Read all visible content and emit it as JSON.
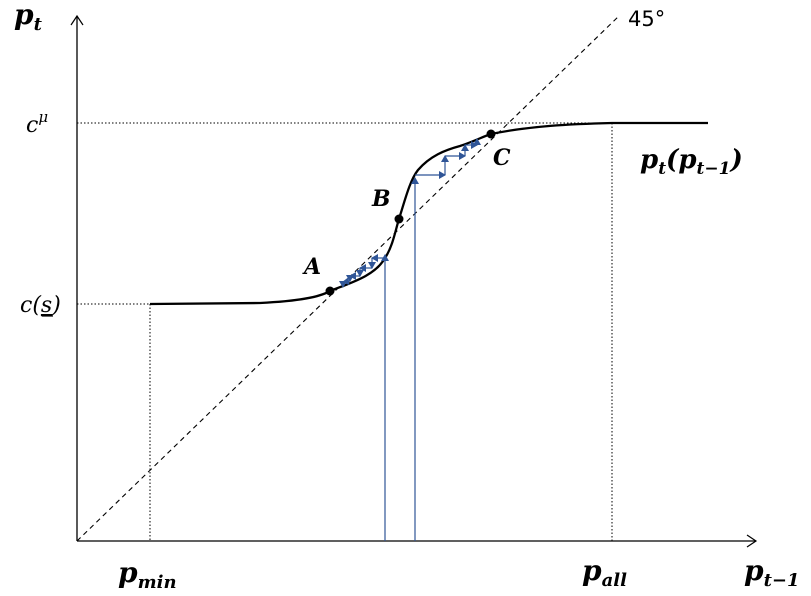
{
  "labels": {
    "y_axis": "p",
    "y_axis_sub": "t",
    "x_axis": "p",
    "x_axis_sub": "t−1",
    "angle": "45°",
    "c_mu_base": "c",
    "c_mu_sup": "μ",
    "c_s": "c(",
    "c_s_inner": "s",
    "c_s_close": ")",
    "p_min_base": "p",
    "p_min_sub": "min",
    "p_all_base": "p",
    "p_all_sub": "all",
    "curve_base": "p",
    "curve_sub1": "t",
    "curve_open": "(",
    "curve_p2": "p",
    "curve_sub2": "t−1",
    "curve_close": ")",
    "point_a": "A",
    "point_b": "B",
    "point_c": "C"
  },
  "colors": {
    "axis": "#000000",
    "curve": "#000000",
    "cobweb": "#2f5597",
    "guide": "#000000"
  }
}
